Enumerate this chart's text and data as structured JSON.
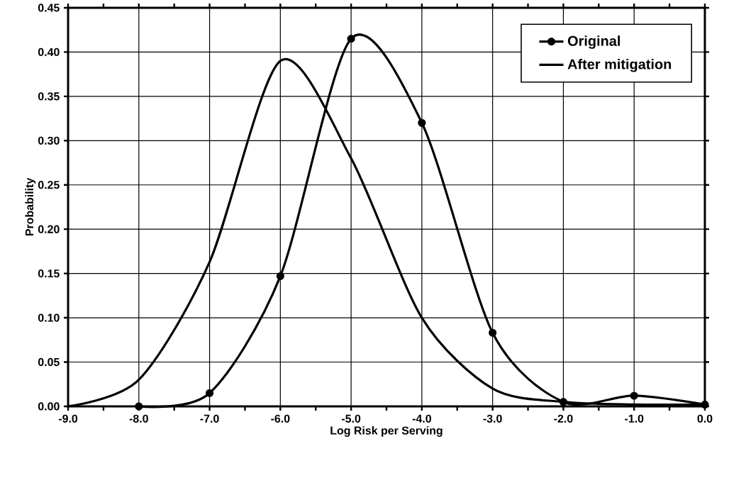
{
  "chart_data": {
    "type": "line",
    "xlabel": "Log Risk per Serving",
    "ylabel": "Probability",
    "x": [
      -9,
      -8,
      -7,
      -6,
      -5,
      -4,
      -3,
      -2,
      -1,
      0
    ],
    "series": [
      {
        "name": "Original",
        "color": "#000000",
        "marker": "circle",
        "values": [
          null,
          0.0,
          0.015,
          0.147,
          0.415,
          0.32,
          0.083,
          0.005,
          0.012,
          0.002
        ]
      },
      {
        "name": "After mitigation",
        "color": "#000000",
        "marker": "none",
        "values": [
          0.0,
          0.03,
          0.163,
          0.39,
          0.28,
          0.1,
          0.02,
          0.005,
          0.002,
          0.002
        ]
      }
    ],
    "xlim": [
      -9,
      0
    ],
    "ylim": [
      0,
      0.45
    ],
    "xticks": [
      {
        "value": -9,
        "label": "-9.0"
      },
      {
        "value": -8,
        "label": "-8.0"
      },
      {
        "value": -7,
        "label": "-7.0"
      },
      {
        "value": -6,
        "label": "-6.0"
      },
      {
        "value": -5,
        "label": "-5.0"
      },
      {
        "value": -4,
        "label": "-4.0"
      },
      {
        "value": -3,
        "label": "-3.0"
      },
      {
        "value": -2,
        "label": "-2.0"
      },
      {
        "value": -1,
        "label": "-1.0"
      },
      {
        "value": 0,
        "label": "0.0"
      }
    ],
    "yticks": [
      {
        "value": 0,
        "label": "0.00"
      },
      {
        "value": 0.05,
        "label": "0.05"
      },
      {
        "value": 0.1,
        "label": "0.10"
      },
      {
        "value": 0.15,
        "label": "0.15"
      },
      {
        "value": 0.2,
        "label": "0.20"
      },
      {
        "value": 0.25,
        "label": "0.25"
      },
      {
        "value": 0.3,
        "label": "0.30"
      },
      {
        "value": 0.35,
        "label": "0.35"
      },
      {
        "value": 0.4,
        "label": "0.40"
      },
      {
        "value": 0.45,
        "label": "0.45"
      }
    ],
    "grid": true,
    "legend": "top right",
    "line_style": "solid"
  }
}
